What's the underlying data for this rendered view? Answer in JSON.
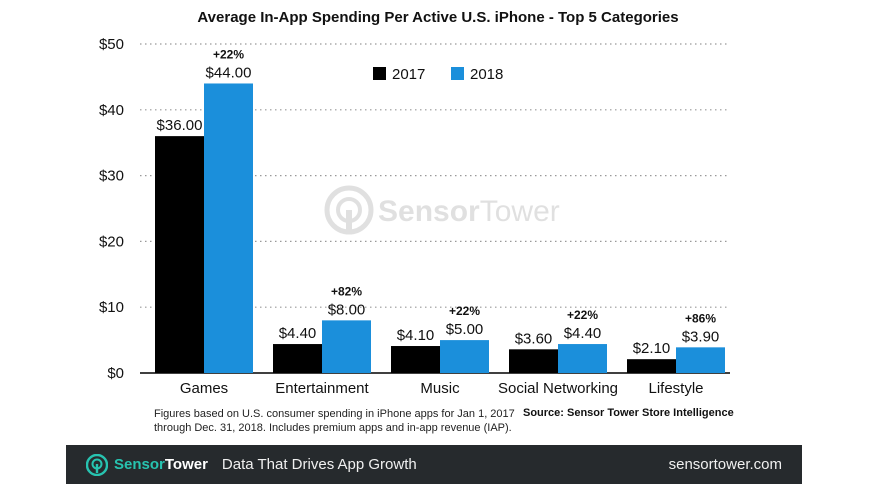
{
  "chart_data": {
    "type": "bar",
    "title": "Average In-App Spending Per Active U.S. iPhone - Top 5 Categories",
    "categories": [
      "Games",
      "Entertainment",
      "Music",
      "Social Networking",
      "Lifestyle"
    ],
    "series": [
      {
        "name": "2017",
        "values": [
          36.0,
          4.4,
          4.1,
          3.6,
          2.1
        ],
        "labels": [
          "$36.00",
          "$4.40",
          "$4.10",
          "$3.60",
          "$2.10"
        ]
      },
      {
        "name": "2018",
        "values": [
          44.0,
          8.0,
          5.0,
          4.4,
          3.9
        ],
        "labels": [
          "$44.00",
          "$8.00",
          "$5.00",
          "$4.40",
          "$3.90"
        ]
      }
    ],
    "growth_labels": [
      "+22%",
      "+82%",
      "+22%",
      "+22%",
      "+86%"
    ],
    "ylim": [
      0,
      50
    ],
    "yticks": [
      0,
      10,
      20,
      30,
      40,
      50
    ],
    "ytick_labels": [
      "$0",
      "$10",
      "$20",
      "$30",
      "$40",
      "$50"
    ],
    "xlabel": "",
    "ylabel": "",
    "grid": true,
    "legend_position": "top-center",
    "colors": {
      "2017": "#000000",
      "2018": "#1b8fdb",
      "grid": "#999999"
    }
  },
  "watermark": {
    "brand_part1": "Sensor",
    "brand_part2": "Tower",
    "icon": "sensortower-logo-icon"
  },
  "footnote": {
    "line1": "Figures based on U.S. consumer spending in iPhone apps for Jan 1, 2017",
    "line2": "through Dec. 31, 2018. Includes premium apps and in-app revenue (IAP)."
  },
  "source": "Source: Sensor Tower Store Intelligence",
  "footer": {
    "brand_part1": "Sensor",
    "brand_part2": "Tower",
    "tagline": "Data That Drives App Growth",
    "site": "sensortower.com",
    "logo_icon": "sensortower-logo-icon",
    "accent_color": "#27c3b0",
    "background_color": "#262a2d"
  }
}
